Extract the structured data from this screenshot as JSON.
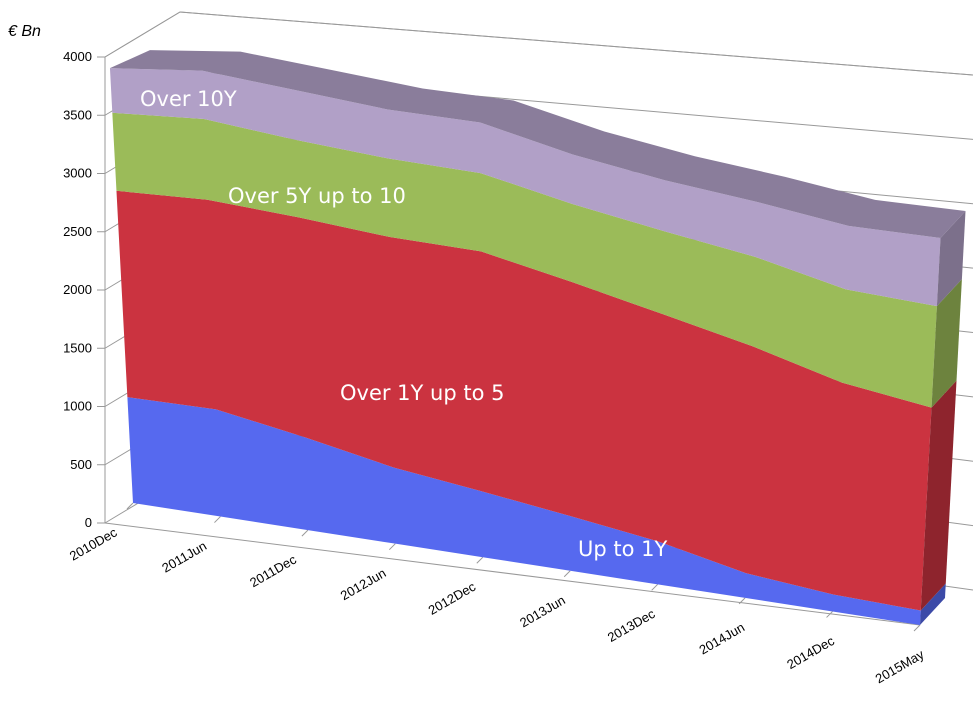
{
  "chart_data": {
    "type": "area3d",
    "y_axis_label": "€ Bn",
    "categories": [
      "2010Dec",
      "2011Jun",
      "2011Dec",
      "2012Jun",
      "2012Dec",
      "2013Jun",
      "2013Dec",
      "2014Jun",
      "2014Dec",
      "2015May"
    ],
    "ylim": [
      0,
      4000
    ],
    "yticks": [
      0,
      500,
      1000,
      1500,
      2000,
      2500,
      3000,
      3500,
      4000
    ],
    "series": [
      {
        "name": "Up to 1Y",
        "color": "#5669ef",
        "values": [
          950,
          930,
          780,
          620,
          520,
          420,
          320,
          180,
          120,
          100
        ]
      },
      {
        "name": "Over 1Y up to 5",
        "color": "#cb3340",
        "values": [
          1850,
          1820,
          1850,
          1880,
          1900,
          1800,
          1700,
          1650,
          1500,
          1400
        ]
      },
      {
        "name": "Over 5Y up to 10",
        "color": "#9bbb59",
        "values": [
          700,
          700,
          650,
          640,
          620,
          600,
          620,
          650,
          660,
          700
        ]
      },
      {
        "name": "Over 10Y",
        "color": "#b1a0c7",
        "values": [
          400,
          420,
          420,
          400,
          400,
          380,
          380,
          400,
          450,
          470
        ]
      }
    ]
  }
}
